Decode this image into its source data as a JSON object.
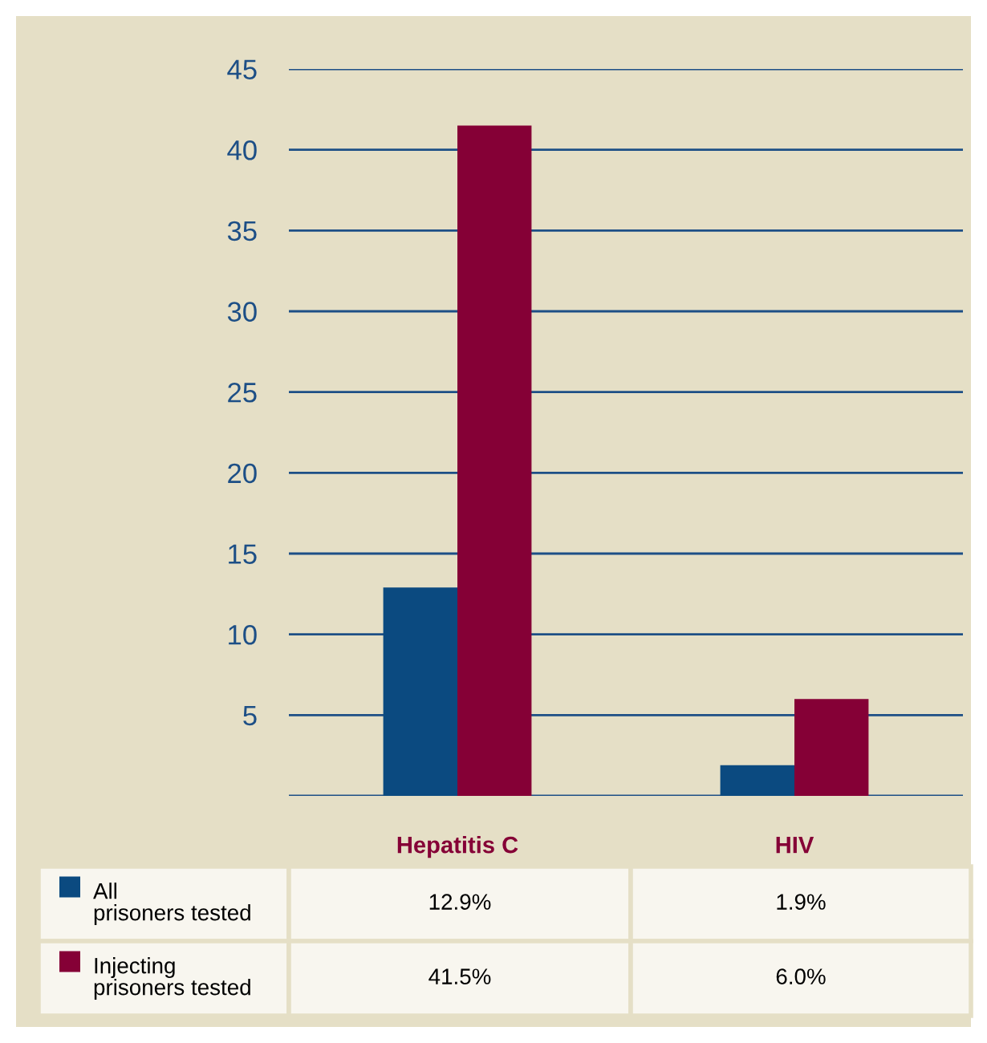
{
  "chart_data": {
    "type": "bar",
    "categories": [
      "Hepatitis C",
      "HIV"
    ],
    "series": [
      {
        "name": "All prisoners tested",
        "color": "#0b4a80",
        "values": [
          12.9,
          1.9
        ],
        "value_labels": [
          "12.9%",
          "1.9%"
        ]
      },
      {
        "name": "Injecting prisoners tested",
        "color": "#850036",
        "values": [
          41.5,
          6.0
        ],
        "value_labels": [
          "41.5%",
          "6.0%"
        ]
      }
    ],
    "ylim": [
      0,
      45
    ],
    "yticks": [
      {
        "value": 0,
        "label": null
      },
      5,
      10,
      15,
      20,
      25,
      30,
      35,
      40,
      45
    ],
    "grid": "y",
    "legend": "bottom"
  }
}
